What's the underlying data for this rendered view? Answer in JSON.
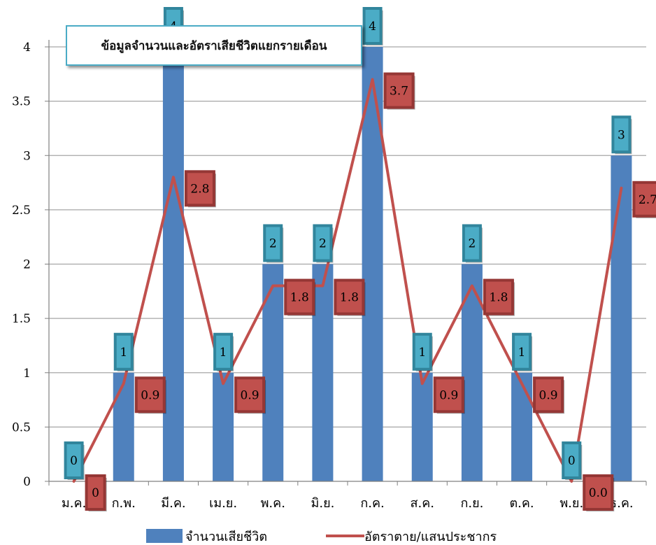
{
  "chart_data": {
    "type": "bar",
    "title": "ข้อมูลจำนวนและอัตราเสียชีวิตแยกรายเดือน",
    "categories": [
      "ม.ค.",
      "ก.พ.",
      "มี.ค.",
      "เม.ย.",
      "พ.ค.",
      "มิ.ย.",
      "ก.ค.",
      "ส.ค.",
      "ก.ย.",
      "ต.ค.",
      "พ.ย.",
      "ธ.ค."
    ],
    "ylim": [
      0,
      4
    ],
    "yticks": [
      0,
      0.5,
      1,
      1.5,
      2,
      2.5,
      3,
      3.5,
      4
    ],
    "ytick_labels": [
      "0",
      "0.5",
      "1",
      "1.5",
      "2",
      "2.5",
      "3",
      "3.5",
      "4"
    ],
    "grid": true,
    "legend_position": "bottom",
    "series": [
      {
        "name": "จำนวนเสียชีวิต",
        "kind": "bar",
        "color": "#4f81bd",
        "values": [
          0,
          1,
          4,
          1,
          2,
          2,
          4,
          1,
          2,
          1,
          0,
          3
        ],
        "labels": [
          "0",
          "1",
          "4",
          "1",
          "2",
          "2",
          "4",
          "1",
          "2",
          "1",
          "0",
          "3"
        ],
        "label_fill": "#4bacc6",
        "label_border": "#31859c"
      },
      {
        "name": "อัตราตาย/แสนประชากร",
        "kind": "line",
        "color": "#c0504d",
        "values": [
          0,
          0.9,
          2.8,
          0.9,
          1.8,
          1.8,
          3.7,
          0.9,
          1.8,
          0.9,
          0.0,
          2.7
        ],
        "labels": [
          "0",
          "0.9",
          "2.8",
          "0.9",
          "1.8",
          "1.8",
          "3.7",
          "0.9",
          "1.8",
          "0.9",
          "0.0",
          "2.7"
        ],
        "label_fill": "#c0504d",
        "label_border": "#953735"
      }
    ]
  }
}
